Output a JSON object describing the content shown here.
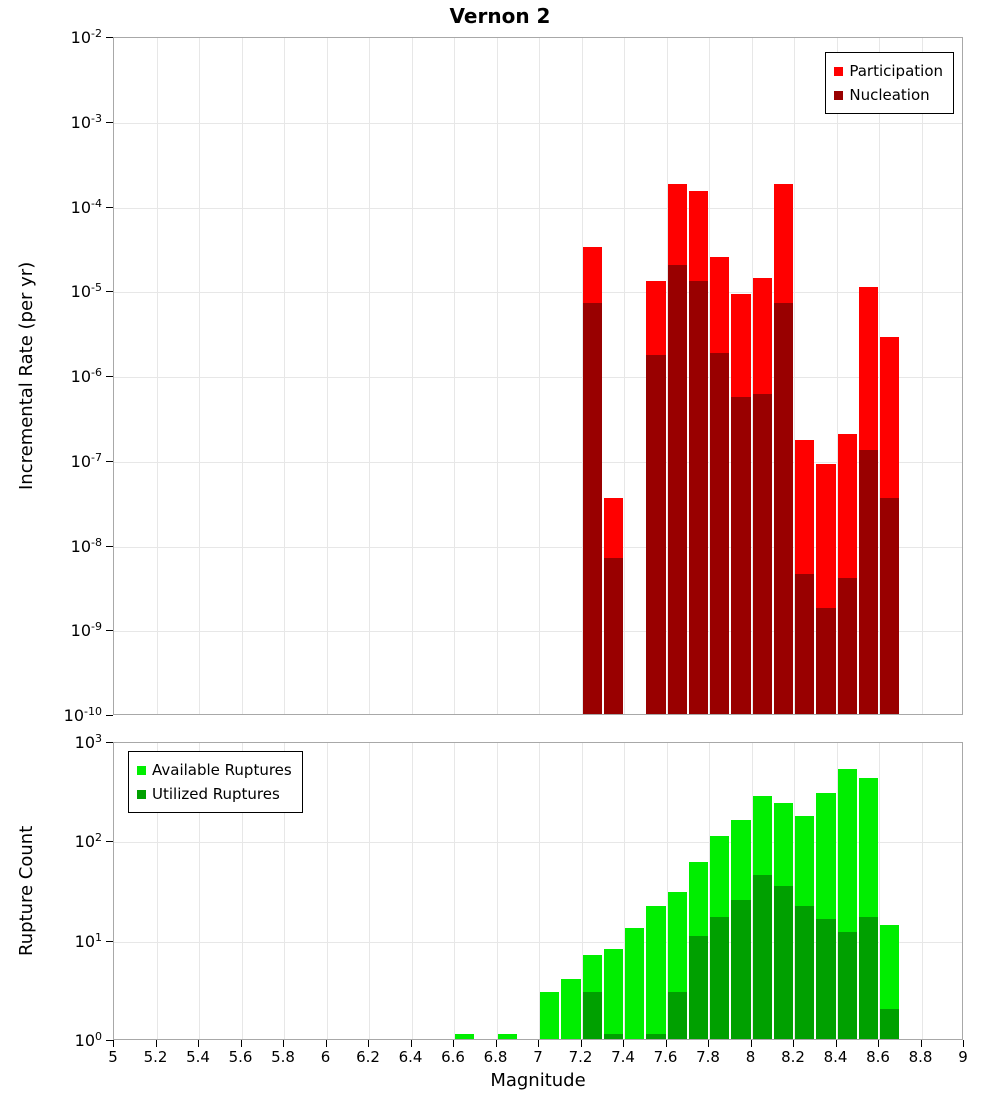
{
  "title": "Vernon 2",
  "x_axis": {
    "label": "Magnitude",
    "min": 5,
    "max": 9,
    "ticks": [
      "5",
      "5.2",
      "5.4",
      "5.6",
      "5.8",
      "6",
      "6.2",
      "6.4",
      "6.6",
      "6.8",
      "7",
      "7.2",
      "7.4",
      "7.6",
      "7.8",
      "8",
      "8.2",
      "8.4",
      "8.6",
      "8.8",
      "9"
    ]
  },
  "chart_data": [
    {
      "type": "bar",
      "title": "Vernon 2",
      "xlabel": "Magnitude",
      "ylabel": "Incremental Rate (per yr)",
      "yscale": "log",
      "ylim": [
        1e-10,
        0.01
      ],
      "y_tick_exponents": [
        -2,
        -3,
        -4,
        -5,
        -6,
        -7,
        -8,
        -9,
        -10
      ],
      "bin_width": 0.1,
      "grid": true,
      "legend_position": "top-right",
      "series": [
        {
          "name": "Participation",
          "color": "#ff0000",
          "x": [
            7.25,
            7.35,
            7.55,
            7.65,
            7.75,
            7.85,
            7.95,
            8.05,
            8.15,
            8.25,
            8.35,
            8.45,
            8.55,
            8.65
          ],
          "values": [
            3.2e-05,
            3.5e-08,
            1.3e-05,
            0.00018,
            0.00015,
            2.5e-05,
            9e-06,
            1.4e-05,
            0.00018,
            1.7e-07,
            9e-08,
            2e-07,
            1.1e-05,
            2.8e-06
          ]
        },
        {
          "name": "Nucleation",
          "color": "#990000",
          "x": [
            7.25,
            7.35,
            7.55,
            7.65,
            7.75,
            7.85,
            7.95,
            8.05,
            8.15,
            8.25,
            8.35,
            8.45,
            8.55,
            8.65
          ],
          "values": [
            7e-06,
            7e-09,
            1.7e-06,
            2e-05,
            1.3e-05,
            1.8e-06,
            5.5e-07,
            6e-07,
            7e-06,
            4.5e-09,
            1.8e-09,
            4e-09,
            1.3e-07,
            3.5e-08
          ]
        }
      ]
    },
    {
      "type": "bar",
      "xlabel": "Magnitude",
      "ylabel": "Rupture Count",
      "yscale": "log",
      "ylim": [
        1,
        1000
      ],
      "y_tick_exponents": [
        3,
        2,
        1,
        0
      ],
      "bin_width": 0.1,
      "grid": true,
      "legend_position": "top-left",
      "series": [
        {
          "name": "Available Ruptures",
          "color": "#00ee00",
          "x": [
            6.65,
            6.85,
            7.05,
            7.15,
            7.25,
            7.35,
            7.45,
            7.55,
            7.65,
            7.75,
            7.85,
            7.95,
            8.05,
            8.15,
            8.25,
            8.35,
            8.45,
            8.55,
            8.65
          ],
          "values": [
            1,
            1,
            3,
            4,
            7,
            8,
            13,
            22,
            30,
            60,
            110,
            160,
            280,
            240,
            175,
            300,
            520,
            420,
            14
          ]
        },
        {
          "name": "Utilized Ruptures",
          "color": "#00a000",
          "x": [
            7.25,
            7.35,
            7.55,
            7.65,
            7.75,
            7.85,
            7.95,
            8.05,
            8.15,
            8.25,
            8.35,
            8.45,
            8.55,
            8.65
          ],
          "values": [
            3,
            1,
            1,
            3,
            11,
            17,
            25,
            45,
            35,
            22,
            16,
            12,
            17,
            2
          ]
        }
      ]
    }
  ]
}
